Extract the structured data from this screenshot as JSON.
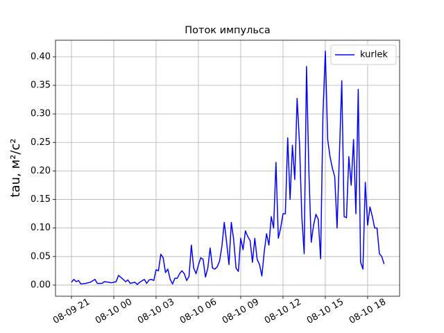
{
  "chart_data": {
    "type": "line",
    "title": "Поток импульса",
    "ylabel": "tau, м²/с²",
    "x": [
      "08-09 21:00",
      "08-09 21:10",
      "08-09 21:20",
      "08-09 21:30",
      "08-09 21:40",
      "08-09 22:00",
      "08-09 22:20",
      "08-09 22:40",
      "08-09 22:50",
      "08-09 23:10",
      "08-09 23:20",
      "08-09 23:40",
      "08-09 23:50",
      "08-10 00:10",
      "08-10 00:20",
      "08-10 00:40",
      "08-10 00:50",
      "08-10 01:00",
      "08-10 01:10",
      "08-10 01:30",
      "08-10 01:40",
      "08-10 01:50",
      "08-10 02:10",
      "08-10 02:20",
      "08-10 02:30",
      "08-10 02:40",
      "08-10 02:50",
      "08-10 03:00",
      "08-10 03:10",
      "08-10 03:20",
      "08-10 03:30",
      "08-10 03:40",
      "08-10 03:50",
      "08-10 04:00",
      "08-10 04:10",
      "08-10 04:20",
      "08-10 04:30",
      "08-10 04:40",
      "08-10 04:50",
      "08-10 05:00",
      "08-10 05:10",
      "08-10 05:20",
      "08-10 05:30",
      "08-10 05:40",
      "08-10 05:50",
      "08-10 06:00",
      "08-10 06:10",
      "08-10 06:20",
      "08-10 06:30",
      "08-10 06:40",
      "08-10 06:50",
      "08-10 07:00",
      "08-10 07:10",
      "08-10 07:20",
      "08-10 07:30",
      "08-10 07:40",
      "08-10 07:50",
      "08-10 08:00",
      "08-10 08:10",
      "08-10 08:20",
      "08-10 08:30",
      "08-10 08:40",
      "08-10 08:50",
      "08-10 09:00",
      "08-10 09:10",
      "08-10 09:20",
      "08-10 09:30",
      "08-10 09:40",
      "08-10 09:50",
      "08-10 10:00",
      "08-10 10:10",
      "08-10 10:20",
      "08-10 10:30",
      "08-10 10:40",
      "08-10 10:50",
      "08-10 11:00",
      "08-10 11:10",
      "08-10 11:20",
      "08-10 11:30",
      "08-10 11:40",
      "08-10 11:50",
      "08-10 12:00",
      "08-10 12:10",
      "08-10 12:20",
      "08-10 12:30",
      "08-10 12:40",
      "08-10 12:50",
      "08-10 13:00",
      "08-10 13:10",
      "08-10 13:20",
      "08-10 13:30",
      "08-10 13:40",
      "08-10 13:50",
      "08-10 14:00",
      "08-10 14:10",
      "08-10 14:20",
      "08-10 14:30",
      "08-10 14:40",
      "08-10 14:50",
      "08-10 15:00",
      "08-10 15:10",
      "08-10 15:20",
      "08-10 15:30",
      "08-10 15:40",
      "08-10 15:50",
      "08-10 16:00",
      "08-10 16:10",
      "08-10 16:20",
      "08-10 16:30",
      "08-10 16:40",
      "08-10 16:50",
      "08-10 17:00",
      "08-10 17:10",
      "08-10 17:20",
      "08-10 17:30",
      "08-10 17:40",
      "08-10 17:50",
      "08-10 18:00",
      "08-10 18:10",
      "08-10 18:20",
      "08-10 18:30",
      "08-10 18:40",
      "08-10 18:50",
      "08-10 19:00",
      "08-10 19:10"
    ],
    "series": [
      {
        "name": "kurlek",
        "color": "#0000ff",
        "values": [
          0.005,
          0.01,
          0.006,
          0.008,
          0.002,
          0.003,
          0.005,
          0.01,
          0.003,
          0.003,
          0.006,
          0.005,
          0.004,
          0.006,
          0.017,
          0.01,
          0.006,
          0.009,
          0.003,
          0.005,
          0.001,
          0.005,
          0.01,
          0.003,
          0.009,
          0.01,
          0.008,
          0.027,
          0.025,
          0.054,
          0.048,
          0.022,
          0.028,
          0.01,
          0.002,
          0.012,
          0.012,
          0.02,
          0.025,
          0.02,
          0.008,
          0.015,
          0.07,
          0.03,
          0.02,
          0.035,
          0.048,
          0.045,
          0.014,
          0.03,
          0.065,
          0.03,
          0.028,
          0.032,
          0.042,
          0.068,
          0.11,
          0.075,
          0.036,
          0.11,
          0.08,
          0.03,
          0.024,
          0.082,
          0.062,
          0.095,
          0.085,
          0.078,
          0.04,
          0.082,
          0.045,
          0.036,
          0.016,
          0.058,
          0.09,
          0.07,
          0.12,
          0.1,
          0.215,
          0.082,
          0.1,
          0.125,
          0.125,
          0.258,
          0.15,
          0.245,
          0.185,
          0.327,
          0.25,
          0.12,
          0.055,
          0.383,
          0.2,
          0.075,
          0.105,
          0.124,
          0.115,
          0.046,
          0.3,
          0.41,
          0.255,
          0.225,
          0.205,
          0.19,
          0.1,
          0.23,
          0.358,
          0.12,
          0.118,
          0.225,
          0.175,
          0.255,
          0.125,
          0.343,
          0.04,
          0.028,
          0.18,
          0.105,
          0.137,
          0.12,
          0.1,
          0.1,
          0.055,
          0.05,
          0.037
        ]
      }
    ],
    "xlim": [
      "08-09 19:52",
      "08-10 20:16"
    ],
    "xticks": [
      {
        "value": "08-09 21:00",
        "label": "08-09 21"
      },
      {
        "value": "08-10 00:00",
        "label": "08-10 00"
      },
      {
        "value": "08-10 03:00",
        "label": "08-10 03"
      },
      {
        "value": "08-10 06:00",
        "label": "08-10 06"
      },
      {
        "value": "08-10 09:00",
        "label": "08-10 09"
      },
      {
        "value": "08-10 12:00",
        "label": "08-10 12"
      },
      {
        "value": "08-10 15:00",
        "label": "08-10 15"
      },
      {
        "value": "08-10 18:00",
        "label": "08-10 18"
      }
    ],
    "ylim": [
      -0.0195,
      0.429
    ],
    "yticks": [
      {
        "value": 0,
        "label": "0.00"
      },
      0.05,
      {
        "value": 0.1,
        "label": "0.10"
      },
      0.15,
      {
        "value": 0.2,
        "label": "0.20"
      },
      0.25,
      {
        "value": 0.3,
        "label": "0.30"
      },
      0.35,
      {
        "value": 0.4,
        "label": "0.40"
      }
    ],
    "grid": true,
    "legend": "upper right"
  }
}
